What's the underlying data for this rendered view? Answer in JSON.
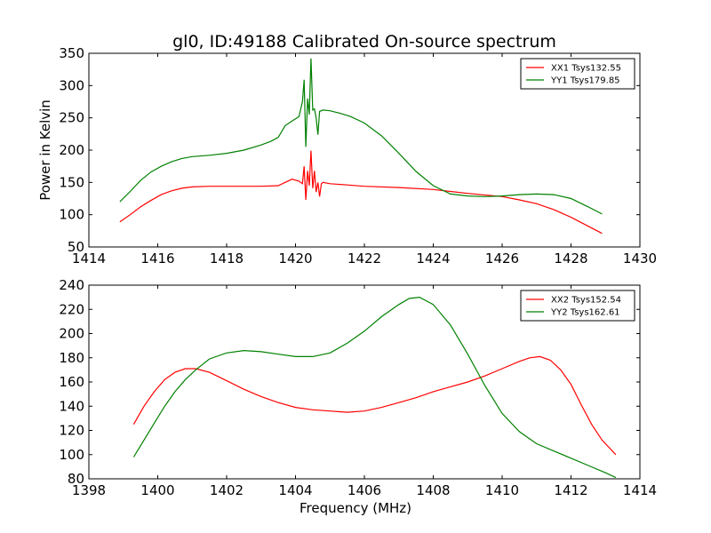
{
  "title": "gl0, ID:49188 Calibrated On-source spectrum",
  "chart_data": [
    {
      "type": "line",
      "title": "gl0, ID:49188 Calibrated On-source spectrum",
      "xlabel": "",
      "ylabel": "Power in Kelvin",
      "xlim": [
        1414,
        1430
      ],
      "ylim": [
        50,
        350
      ],
      "xticks": [
        1414,
        1416,
        1418,
        1420,
        1422,
        1424,
        1426,
        1428,
        1430
      ],
      "yticks": [
        50,
        100,
        150,
        200,
        250,
        300,
        350
      ],
      "grid": false,
      "legend_position": "top-right",
      "series": [
        {
          "name": "XX1 Tsys132.55",
          "color": "#ff0000",
          "x": [
            1414.9,
            1415.2,
            1415.5,
            1415.8,
            1416.1,
            1416.4,
            1416.7,
            1417.0,
            1417.5,
            1418.0,
            1418.5,
            1419.0,
            1419.5,
            1419.7,
            1419.9,
            1420.1,
            1420.2,
            1420.25,
            1420.3,
            1420.35,
            1420.4,
            1420.45,
            1420.5,
            1420.55,
            1420.6,
            1420.65,
            1420.7,
            1420.75,
            1420.8,
            1421.0,
            1421.5,
            1422.0,
            1423.0,
            1424.0,
            1425.0,
            1426.0,
            1426.5,
            1427.0,
            1427.5,
            1428.0,
            1428.5,
            1428.9
          ],
          "values": [
            89,
            100,
            112,
            122,
            131,
            137,
            141,
            143,
            144,
            144,
            144,
            144,
            145,
            150,
            155,
            152,
            148,
            175,
            123,
            168,
            145,
            199,
            141,
            168,
            135,
            150,
            128,
            148,
            150,
            148,
            146,
            144,
            142,
            139,
            133,
            128,
            123,
            117,
            108,
            96,
            82,
            71
          ]
        },
        {
          "name": "YY1 Tsys179.85",
          "color": "#008000",
          "x": [
            1414.9,
            1415.2,
            1415.5,
            1415.8,
            1416.1,
            1416.4,
            1416.7,
            1417.0,
            1417.5,
            1418.0,
            1418.5,
            1419.0,
            1419.3,
            1419.5,
            1419.7,
            1419.9,
            1420.1,
            1420.2,
            1420.25,
            1420.3,
            1420.35,
            1420.4,
            1420.45,
            1420.5,
            1420.55,
            1420.6,
            1420.65,
            1420.7,
            1420.8,
            1421.0,
            1421.3,
            1421.6,
            1422.0,
            1422.5,
            1423.0,
            1423.5,
            1424.0,
            1424.5,
            1425.0,
            1425.5,
            1426.0,
            1426.5,
            1427.0,
            1427.5,
            1428.0,
            1428.5,
            1428.9
          ],
          "values": [
            120,
            136,
            153,
            166,
            175,
            182,
            187,
            190,
            192,
            195,
            200,
            208,
            214,
            220,
            238,
            245,
            252,
            275,
            309,
            205,
            280,
            255,
            342,
            262,
            264,
            250,
            224,
            260,
            262,
            261,
            257,
            252,
            242,
            222,
            195,
            167,
            145,
            132,
            129,
            128,
            129,
            131,
            132,
            131,
            125,
            112,
            101
          ]
        }
      ]
    },
    {
      "type": "line",
      "title": "",
      "xlabel": "Frequency (MHz)",
      "ylabel": "",
      "xlim": [
        1398,
        1414
      ],
      "ylim": [
        80,
        240
      ],
      "xticks": [
        1398,
        1400,
        1402,
        1404,
        1406,
        1408,
        1410,
        1412,
        1414
      ],
      "yticks": [
        80,
        100,
        120,
        140,
        160,
        180,
        200,
        220,
        240
      ],
      "grid": false,
      "legend_position": "top-right",
      "series": [
        {
          "name": "XX2 Tsys152.54",
          "color": "#ff0000",
          "x": [
            1399.3,
            1399.6,
            1399.9,
            1400.2,
            1400.5,
            1400.8,
            1401.1,
            1401.5,
            1402.0,
            1402.5,
            1403.0,
            1403.5,
            1404.0,
            1404.5,
            1405.0,
            1405.5,
            1406.0,
            1406.5,
            1407.0,
            1407.5,
            1408.0,
            1408.5,
            1409.0,
            1409.5,
            1410.0,
            1410.5,
            1410.8,
            1411.1,
            1411.4,
            1411.7,
            1412.0,
            1412.3,
            1412.6,
            1412.9,
            1413.3
          ],
          "values": [
            125,
            140,
            152,
            162,
            168,
            171,
            171,
            168,
            161,
            154,
            148,
            143,
            139,
            137,
            136,
            135,
            136,
            139,
            143,
            147,
            152,
            156,
            160,
            165,
            171,
            177,
            180,
            181,
            178,
            170,
            158,
            141,
            125,
            112,
            100
          ]
        },
        {
          "name": "YY2 Tsys162.61",
          "color": "#008000",
          "x": [
            1399.3,
            1399.6,
            1399.9,
            1400.2,
            1400.5,
            1400.8,
            1401.1,
            1401.5,
            1402.0,
            1402.5,
            1403.0,
            1403.5,
            1404.0,
            1404.5,
            1405.0,
            1405.5,
            1406.0,
            1406.5,
            1407.0,
            1407.3,
            1407.6,
            1408.0,
            1408.5,
            1409.0,
            1409.5,
            1410.0,
            1410.5,
            1411.0,
            1411.5,
            1412.0,
            1412.5,
            1413.0,
            1413.3
          ],
          "values": [
            98,
            112,
            126,
            140,
            152,
            162,
            170,
            179,
            184,
            186,
            185,
            183,
            181,
            181,
            184,
            192,
            202,
            214,
            224,
            229,
            230,
            224,
            207,
            183,
            157,
            134,
            119,
            109,
            103,
            97,
            91,
            85,
            81
          ]
        }
      ]
    }
  ]
}
